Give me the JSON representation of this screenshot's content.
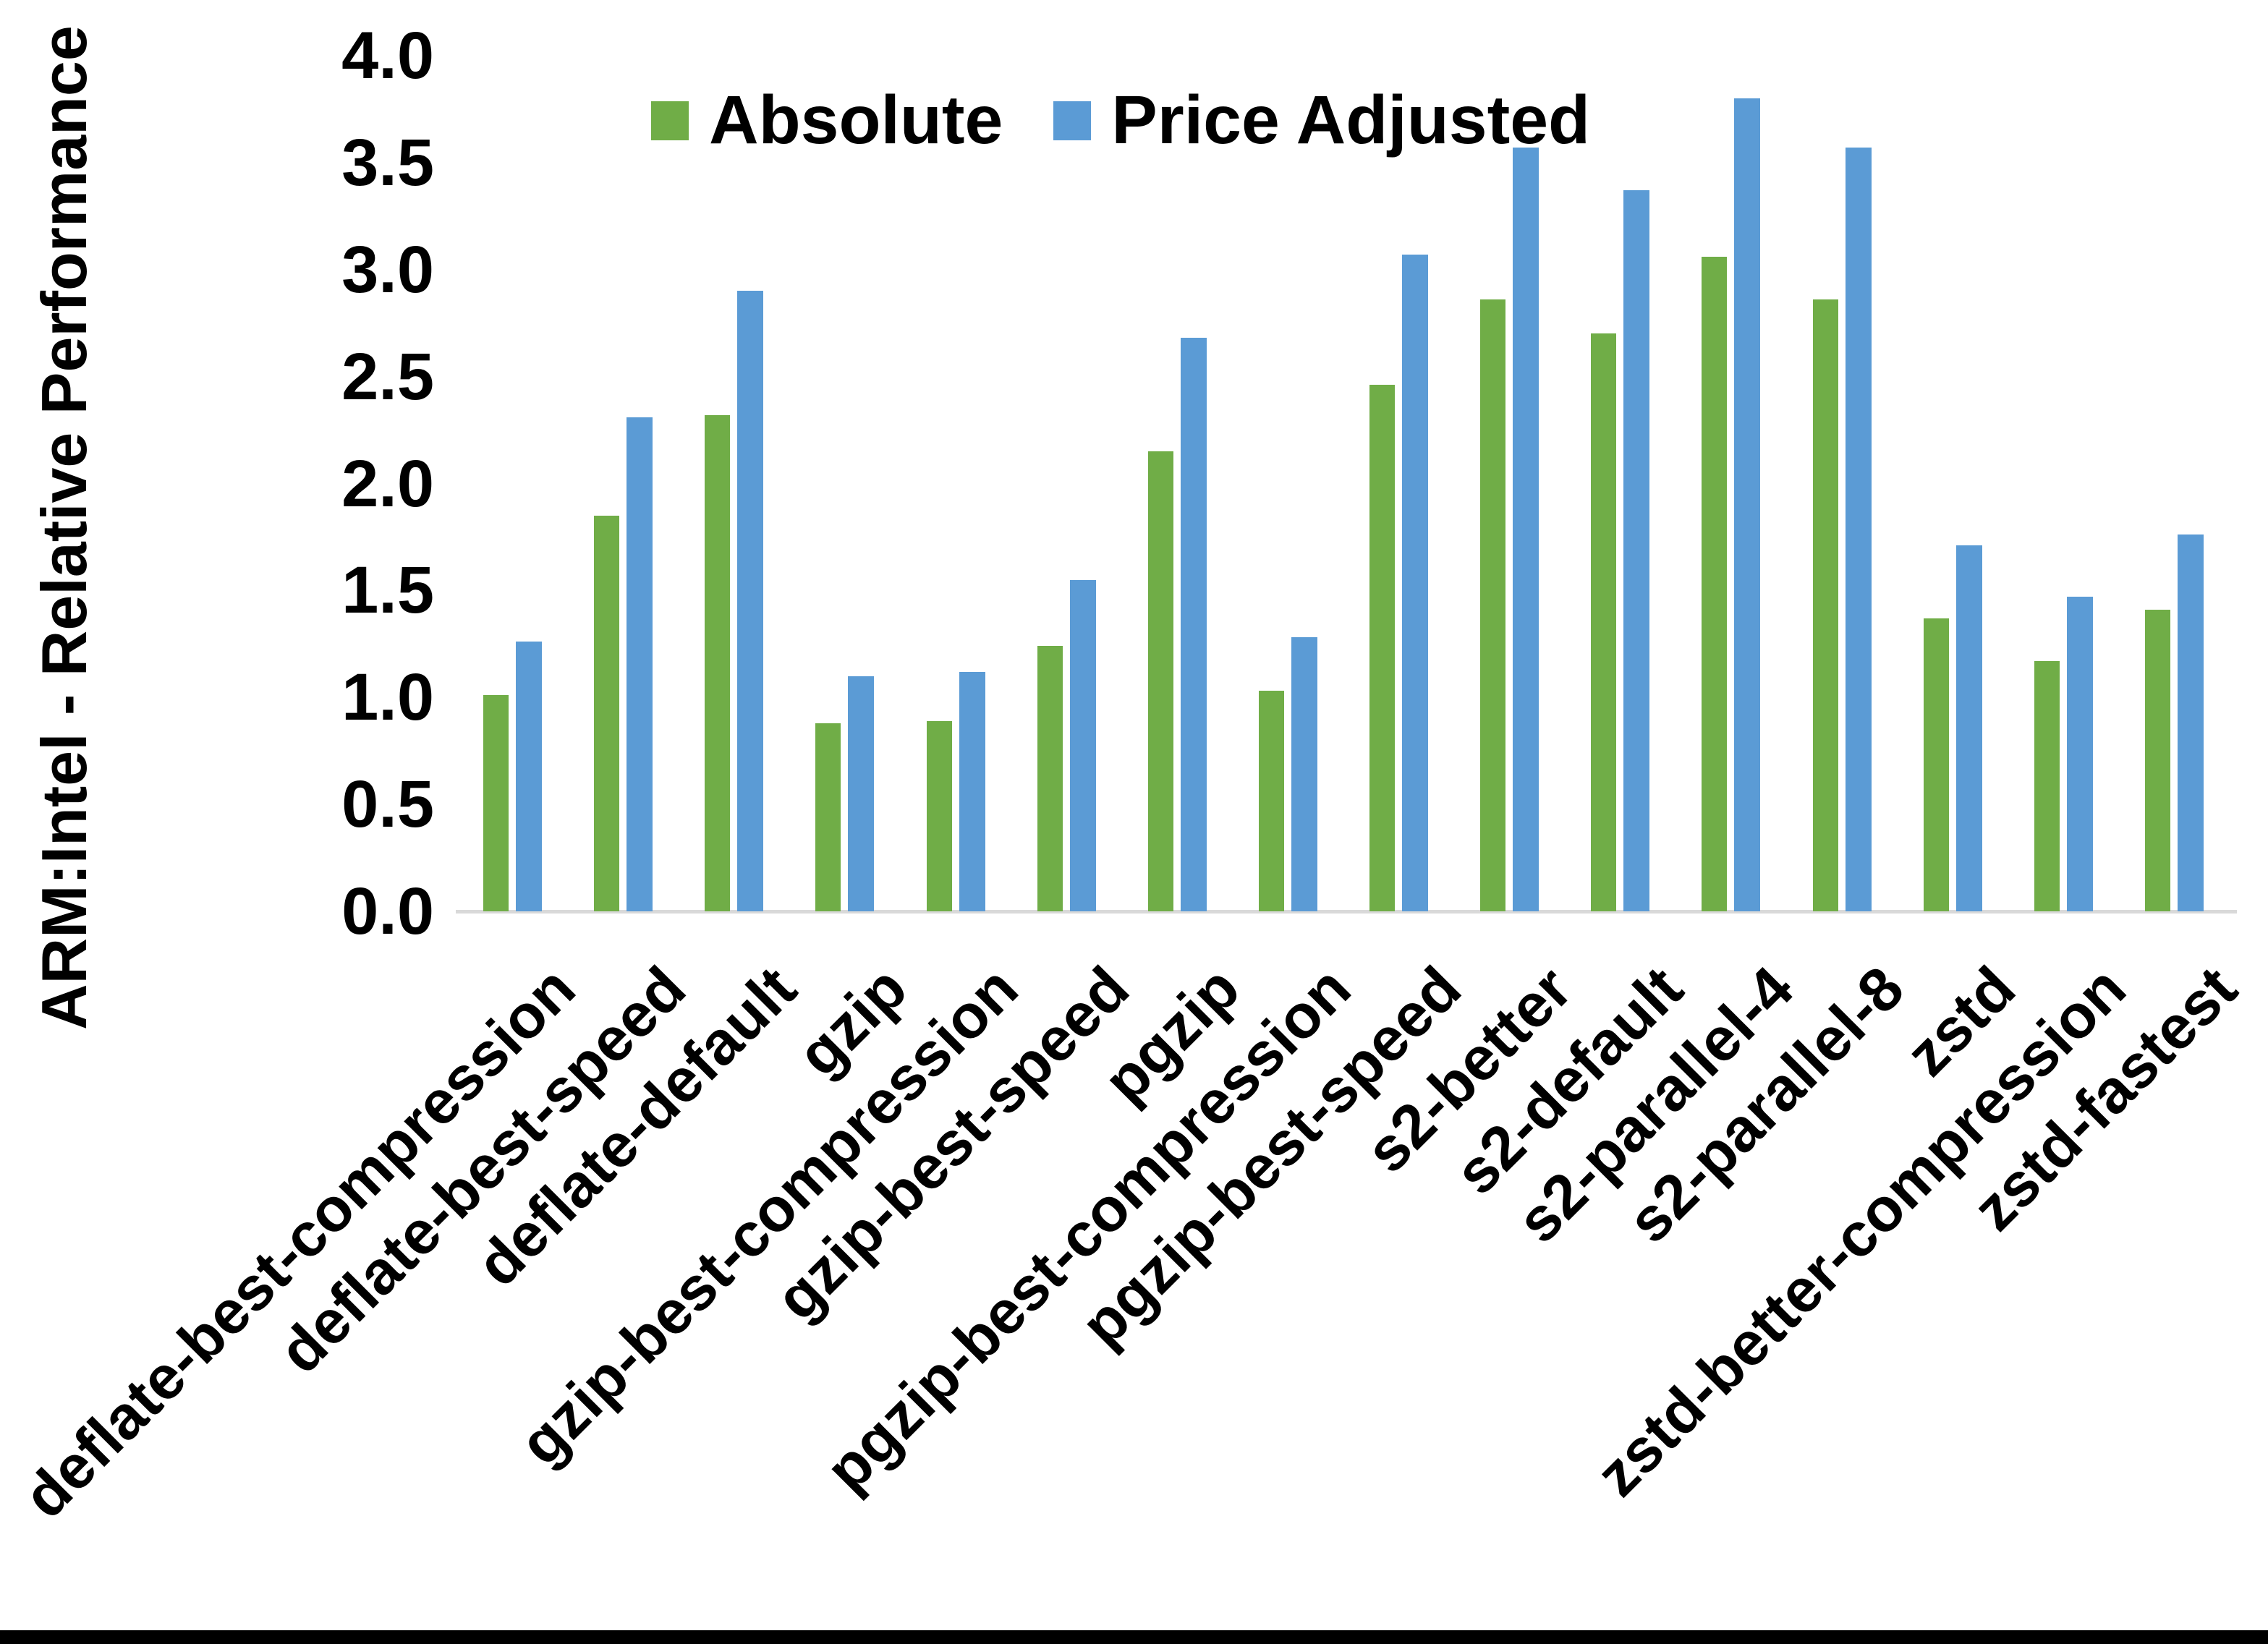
{
  "chart_data": {
    "type": "bar",
    "title": "",
    "ylabel": "ARM:Intel - Relative Performance",
    "xlabel": "",
    "ylim": [
      0.0,
      4.0
    ],
    "ytick_step": 0.5,
    "yticks": [
      "4.0",
      "3.5",
      "3.0",
      "2.5",
      "2.0",
      "1.5",
      "1.0",
      "0.5",
      "0.0"
    ],
    "grid": false,
    "legend_position": "top-center",
    "categories": [
      "deflate-best-compression",
      "deflate-best-speed",
      "deflate-default",
      "gzip",
      "gzip-best-compression",
      "gzip-best-speed",
      "pgzip",
      "pgzip-best-compression",
      "pgzip-best-speed",
      "s2-better",
      "s2-default",
      "s2-parallel-4",
      "s2-parallel-8",
      "zstd",
      "zstd-better-compression",
      "zstd-fastest"
    ],
    "series": [
      {
        "name": "Absolute",
        "color": "#70AD47",
        "values": [
          1.01,
          1.85,
          2.32,
          0.88,
          0.89,
          1.24,
          2.15,
          1.03,
          2.46,
          2.86,
          2.7,
          3.06,
          2.86,
          1.37,
          1.17,
          1.41
        ]
      },
      {
        "name": "Price Adjusted",
        "color": "#5B9BD5",
        "values": [
          1.26,
          2.31,
          2.9,
          1.1,
          1.12,
          1.55,
          2.68,
          1.28,
          3.07,
          3.57,
          3.37,
          3.8,
          3.57,
          1.71,
          1.47,
          1.76
        ]
      }
    ],
    "colors": {
      "axis_line": "#d9d9d9",
      "text": "#000000",
      "background": "#ffffff",
      "bottom_border": "#000000"
    }
  }
}
